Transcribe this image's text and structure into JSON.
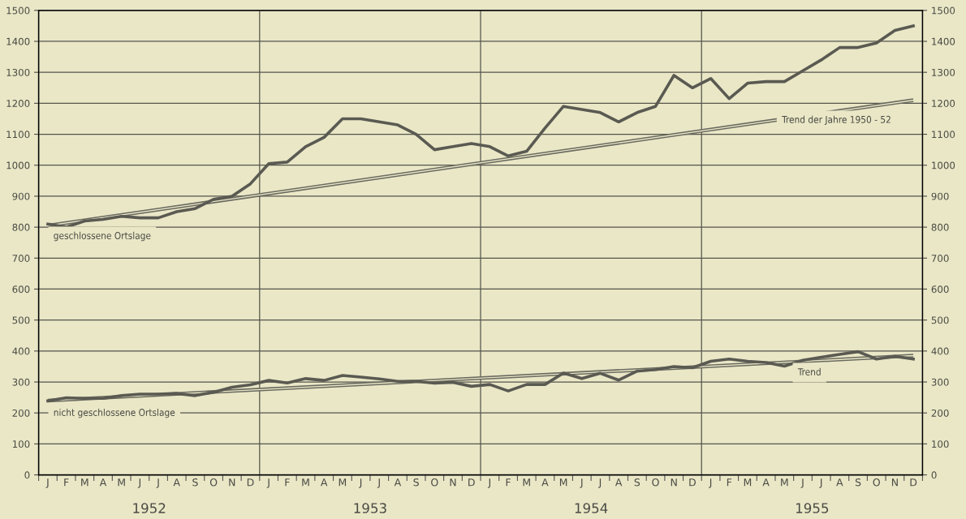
{
  "chart_data": {
    "type": "line",
    "categories": [
      "J",
      "F",
      "M",
      "A",
      "M",
      "J",
      "J",
      "A",
      "S",
      "O",
      "N",
      "D",
      "J",
      "F",
      "M",
      "A",
      "M",
      "J",
      "J",
      "A",
      "S",
      "O",
      "N",
      "D",
      "J",
      "F",
      "M",
      "A",
      "M",
      "J",
      "J",
      "A",
      "S",
      "O",
      "N",
      "D",
      "J",
      "F",
      "M",
      "A",
      "M",
      "J",
      "J",
      "A",
      "S",
      "O",
      "N",
      "D"
    ],
    "annotations": [
      "1952",
      "1953",
      "1954",
      "1955"
    ],
    "series": [
      {
        "name": "geschlossene Ortslage",
        "color": "#5a5a52",
        "values": [
          810,
          800,
          820,
          825,
          835,
          830,
          830,
          850,
          860,
          890,
          900,
          940,
          1005,
          1010,
          1060,
          1090,
          1150,
          1150,
          1140,
          1130,
          1100,
          1050,
          1060,
          1070,
          1060,
          1030,
          1045,
          1120,
          1190,
          1180,
          1170,
          1140,
          1170,
          1190,
          1290,
          1250,
          1280,
          1215,
          1265,
          1270,
          1270,
          1305,
          1340,
          1380,
          1380,
          1395,
          1435,
          1450
        ]
      },
      {
        "name": "Trend der Jahre 1950 - 52",
        "color": "#6a6a60",
        "values": [
          805,
          null,
          null,
          null,
          null,
          null,
          null,
          null,
          null,
          null,
          null,
          null,
          null,
          null,
          null,
          null,
          null,
          null,
          null,
          null,
          null,
          null,
          null,
          null,
          null,
          null,
          null,
          null,
          null,
          null,
          null,
          null,
          null,
          null,
          null,
          null,
          null,
          null,
          null,
          null,
          null,
          null,
          null,
          null,
          null,
          null,
          null,
          1210
        ]
      },
      {
        "name": "nicht geschlossene Ortslage",
        "color": "#5a5a52",
        "values": [
          239,
          249,
          247,
          247,
          256,
          261,
          261,
          263,
          256,
          267,
          283,
          291,
          305,
          297,
          311,
          305,
          321,
          316,
          310,
          302,
          302,
          296,
          299,
          286,
          292,
          271,
          292,
          292,
          329,
          311,
          328,
          306,
          335,
          340,
          350,
          346,
          367,
          374,
          367,
          363,
          351,
          370,
          380,
          389,
          398,
          374,
          383,
          374
        ]
      },
      {
        "name": "Trend",
        "color": "#6a6a60",
        "values": [
          240,
          null,
          null,
          null,
          null,
          null,
          null,
          null,
          null,
          null,
          null,
          null,
          null,
          null,
          null,
          null,
          null,
          null,
          null,
          null,
          null,
          null,
          null,
          null,
          null,
          null,
          null,
          null,
          null,
          null,
          null,
          null,
          null,
          null,
          null,
          null,
          null,
          null,
          null,
          null,
          null,
          null,
          null,
          null,
          null,
          null,
          null,
          385
        ]
      }
    ],
    "ylim": [
      0,
      1500
    ],
    "yticks": [
      0,
      100,
      200,
      300,
      400,
      500,
      600,
      700,
      800,
      900,
      1000,
      1100,
      1200,
      1300,
      1400,
      1500
    ],
    "y2lim": [
      0,
      1500
    ],
    "y2ticks": [
      0,
      100,
      200,
      300,
      400,
      500,
      600,
      700,
      800,
      900,
      1000,
      1100,
      1200,
      1300,
      1400,
      1500
    ],
    "grid": "y",
    "legend": false,
    "marker": "none",
    "line_style": "solid"
  }
}
